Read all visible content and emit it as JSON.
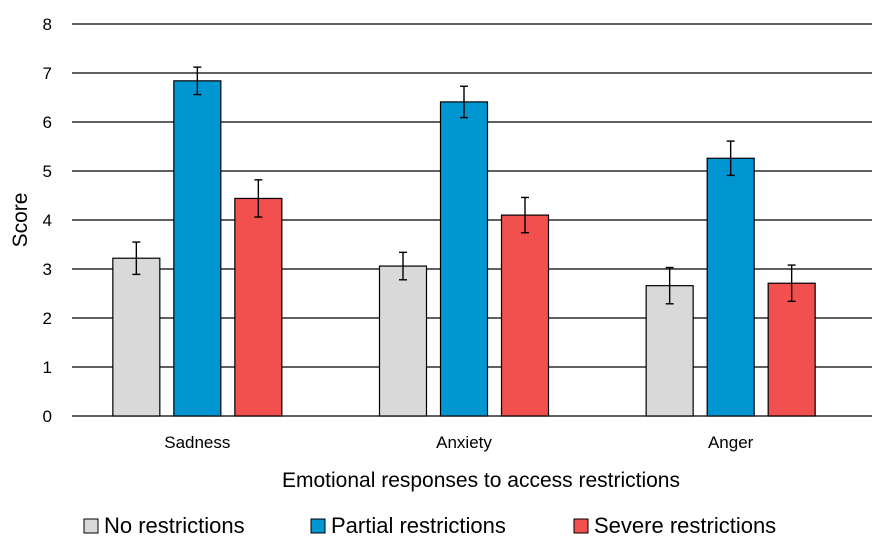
{
  "chart_data": {
    "type": "bar",
    "title": "",
    "xlabel": "Emotional responses to access restrictions",
    "ylabel": "Score",
    "ylim": [
      0,
      8
    ],
    "yticks": [
      "0",
      "1",
      "2",
      "3",
      "4",
      "5",
      "6",
      "7",
      "8"
    ],
    "grid": true,
    "legend_position": "bottom",
    "categories": [
      "Sadness",
      "Anxiety",
      "Anger"
    ],
    "series": [
      {
        "name": "No restrictions",
        "color": "#d9d9d9",
        "values": [
          3.22,
          3.06,
          2.66
        ],
        "errors": [
          0.33,
          0.28,
          0.37
        ]
      },
      {
        "name": "Partial restrictions",
        "color": "#0096d1",
        "values": [
          6.84,
          6.41,
          5.26
        ],
        "errors": [
          0.28,
          0.32,
          0.35
        ]
      },
      {
        "name": "Severe restrictions",
        "color": "#f24f4f",
        "values": [
          4.44,
          4.1,
          2.71
        ],
        "errors": [
          0.38,
          0.36,
          0.37
        ]
      }
    ]
  }
}
